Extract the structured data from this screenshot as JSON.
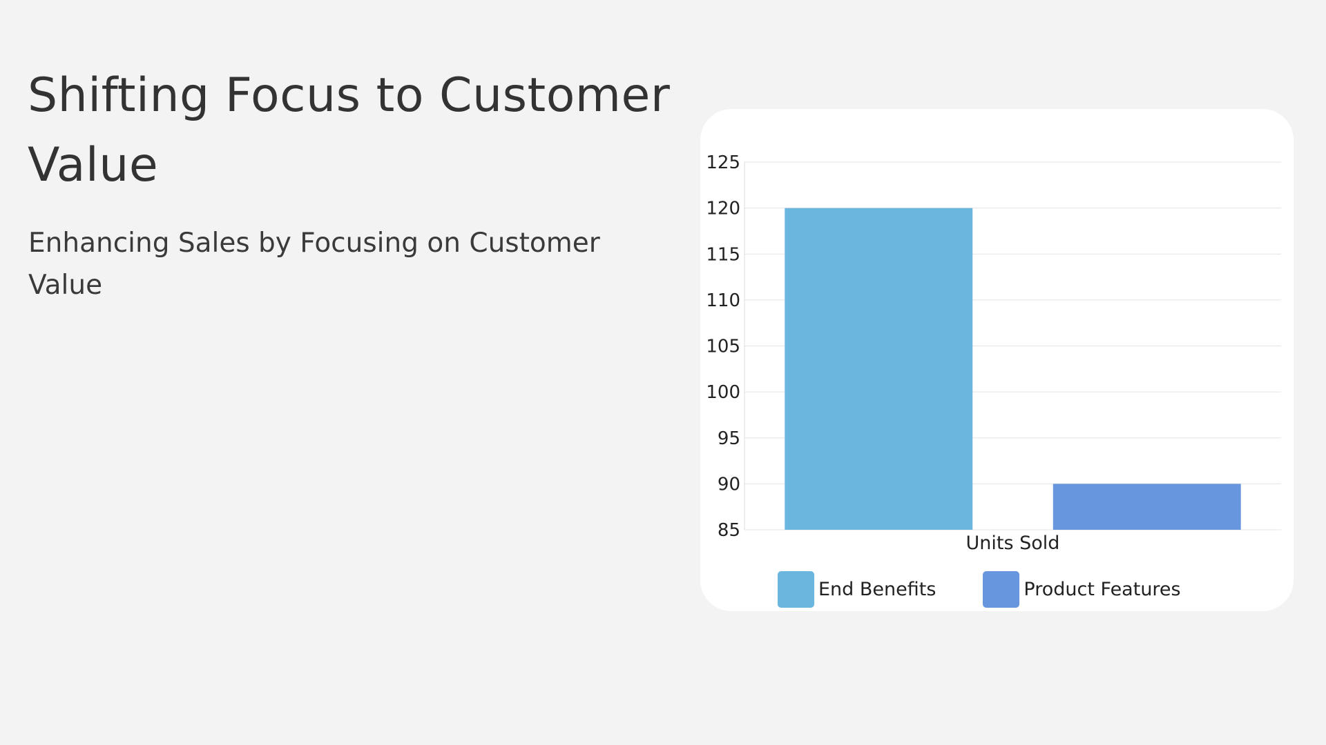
{
  "slide": {
    "title": "Shifting Focus to Customer Value",
    "subtitle": "Enhancing Sales by Focusing on Customer Value"
  },
  "chart_data": {
    "type": "bar",
    "categories": [
      "Units Sold"
    ],
    "series": [
      {
        "name": "End Benefits",
        "values": [
          120
        ],
        "color": "#6bb6de"
      },
      {
        "name": "Product Features",
        "values": [
          90
        ],
        "color": "#6796de"
      }
    ],
    "xlabel": "Units Sold",
    "ylabel": "",
    "ylim": [
      85,
      125
    ],
    "yticks": [
      85,
      90,
      95,
      100,
      105,
      110,
      115,
      120,
      125
    ],
    "grid": true,
    "legend": "bottom"
  }
}
